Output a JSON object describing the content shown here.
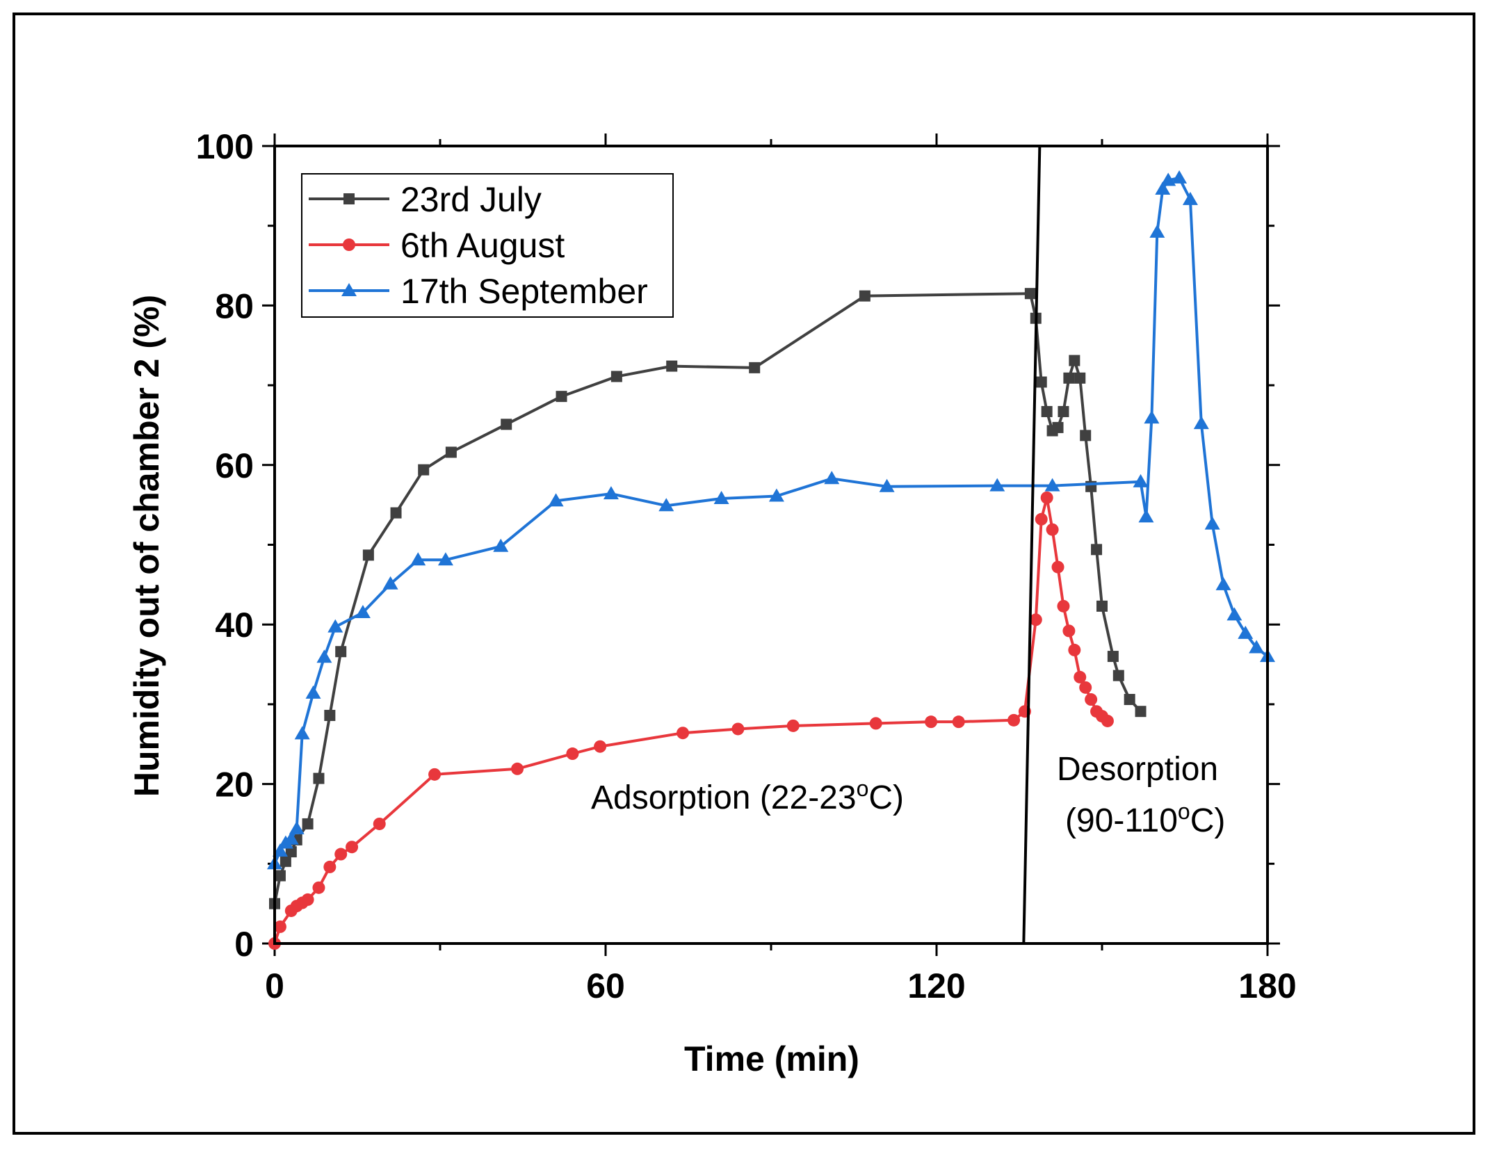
{
  "chart_data": {
    "type": "line",
    "title": "",
    "xlabel": "Time (min)",
    "ylabel": "Humidity out of chamber 2 (%)",
    "xlim": [
      0,
      180
    ],
    "ylim": [
      0,
      100
    ],
    "xticks": [
      "0",
      "60",
      "120",
      "180"
    ],
    "yticks": [
      "0",
      "20",
      "40",
      "60",
      "80",
      "100"
    ],
    "legend_position": "top-left",
    "series": [
      {
        "name": "23rd July",
        "color": "#404040",
        "marker": "square",
        "x": [
          0,
          1,
          2,
          3,
          4,
          6,
          8,
          10,
          12,
          17,
          22,
          27,
          32,
          42,
          52,
          62,
          72,
          87,
          107,
          137,
          138,
          139,
          140,
          141,
          142,
          143,
          144,
          145,
          146,
          147,
          148,
          149,
          150,
          152,
          153,
          155,
          157
        ],
        "y": [
          5,
          8.5,
          10.3,
          11.5,
          13,
          15,
          20.7,
          28.6,
          36.6,
          48.7,
          54,
          59.4,
          61.6,
          65.1,
          68.6,
          71.1,
          72.4,
          72.2,
          81.2,
          81.5,
          78.4,
          70.4,
          66.7,
          64.3,
          64.7,
          66.7,
          70.9,
          73.1,
          70.9,
          63.7,
          57.3,
          49.4,
          42.3,
          36,
          33.6,
          30.6,
          29.1
        ]
      },
      {
        "name": "6th August",
        "color": "#e8373c",
        "marker": "circle",
        "x": [
          0,
          1,
          3,
          4,
          5,
          6,
          8,
          10,
          12,
          14,
          19,
          29,
          44,
          54,
          59,
          74,
          84,
          94,
          109,
          119,
          124,
          134,
          136,
          138,
          139,
          140,
          141,
          142,
          143,
          144,
          145,
          146,
          147,
          148,
          149,
          150,
          151
        ],
        "y": [
          0,
          2.1,
          4.1,
          4.7,
          5.1,
          5.5,
          7,
          9.6,
          11.2,
          12.1,
          15,
          21.2,
          21.9,
          23.8,
          24.7,
          26.4,
          26.9,
          27.3,
          27.6,
          27.8,
          27.8,
          28,
          29.1,
          40.6,
          53.2,
          55.9,
          51.9,
          47.2,
          42.3,
          39.2,
          36.8,
          33.4,
          32.1,
          30.6,
          29.1,
          28.5,
          27.9
        ]
      },
      {
        "name": "17th September",
        "color": "#1f74d6",
        "marker": "triangle",
        "x": [
          0,
          1,
          2,
          3,
          4,
          5,
          7,
          9,
          11,
          16,
          21,
          26,
          31,
          41,
          51,
          61,
          71,
          81,
          91,
          101,
          111,
          131,
          141,
          157,
          158,
          159,
          160,
          161,
          162,
          164,
          166,
          168,
          170,
          172,
          174,
          176,
          178,
          180
        ],
        "y": [
          10,
          11.6,
          12.6,
          13.1,
          14.4,
          26.3,
          31.4,
          35.9,
          39.7,
          41.5,
          45.1,
          48.1,
          48.1,
          49.8,
          55.5,
          56.4,
          54.9,
          55.8,
          56.1,
          58.3,
          57.3,
          57.4,
          57.4,
          57.9,
          53.5,
          65.9,
          89.2,
          94.6,
          95.7,
          96,
          93.3,
          65.2,
          52.6,
          45,
          41.2,
          38.9,
          37.1,
          36
        ]
      }
    ],
    "annotations": [
      {
        "text": "Adsorption (22-23",
        "sup": "o",
        "suffix": "C)"
      },
      {
        "text": "Desorption"
      },
      {
        "text": "(90-110",
        "sup": "o",
        "suffix": "C)"
      }
    ]
  }
}
